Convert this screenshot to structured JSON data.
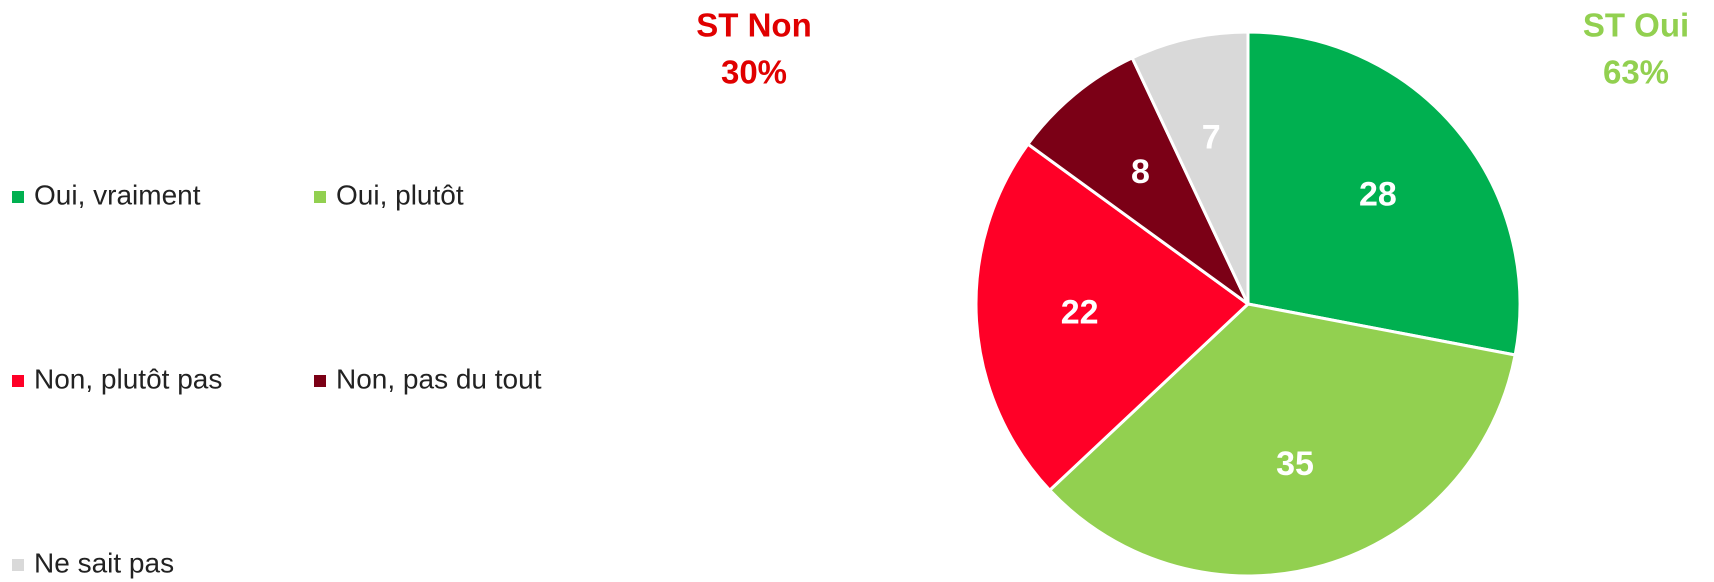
{
  "chart_data": {
    "type": "pie",
    "categories": [
      "Oui, vraiment",
      "Oui, plutôt",
      "Non, plutôt pas",
      "Non, pas du tout",
      "Ne sait pas"
    ],
    "values": [
      28,
      35,
      22,
      8,
      7
    ],
    "colors": [
      "#00b050",
      "#92d050",
      "#ff0027",
      "#7b0016",
      "#d9d9d9"
    ],
    "legend": "left",
    "annotations": [
      {
        "label": "ST Non",
        "value": 30,
        "value_label": "30%",
        "color": "#e00000"
      },
      {
        "label": "ST Oui",
        "value": 63,
        "value_label": "63%",
        "color": "#92d050"
      }
    ]
  }
}
